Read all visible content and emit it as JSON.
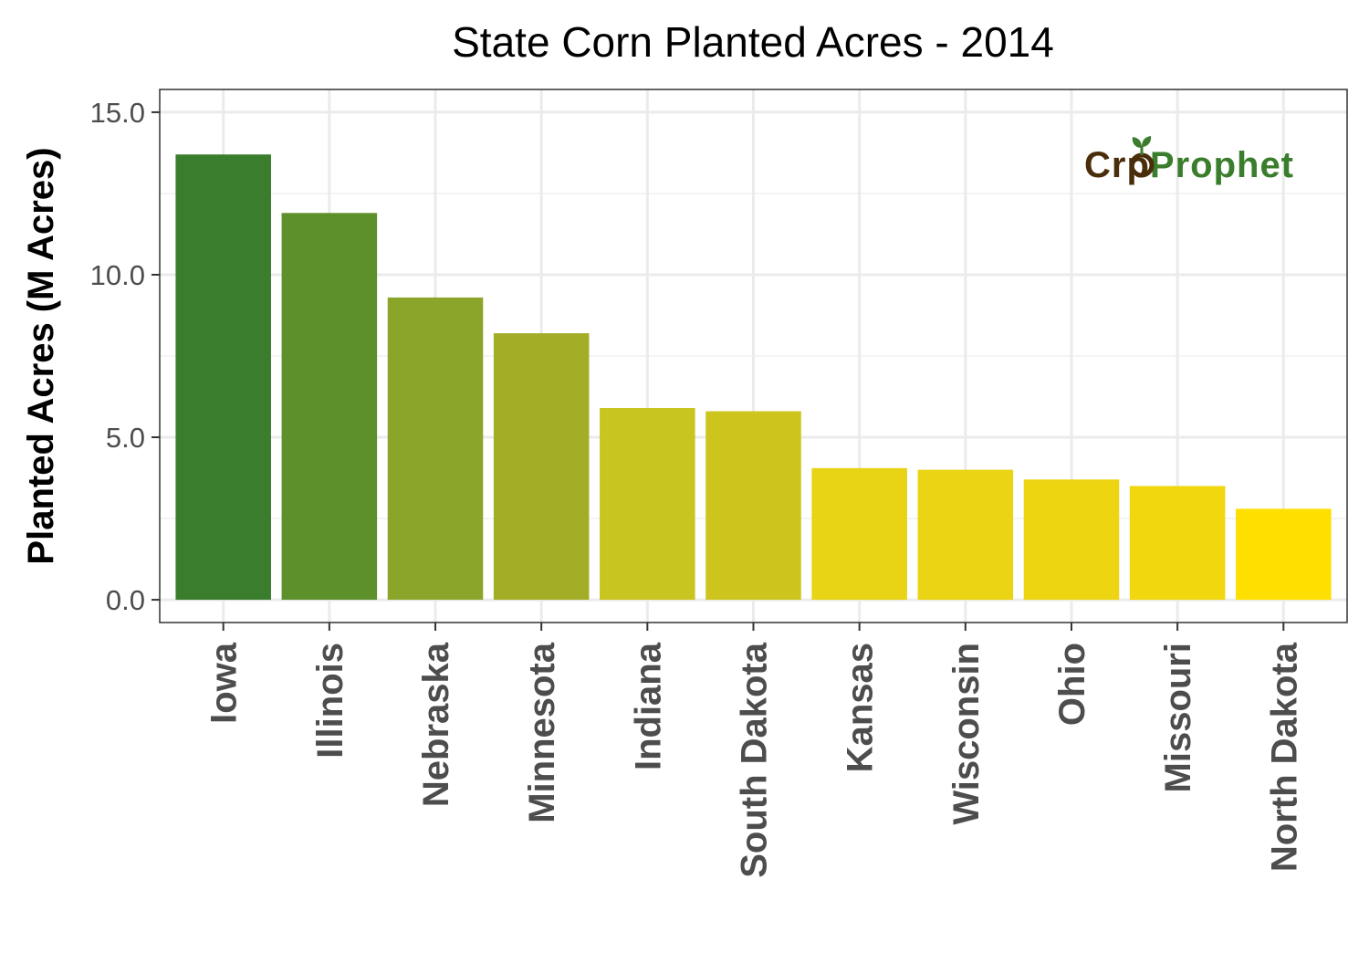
{
  "chart_data": {
    "type": "bar",
    "title": "State Corn Planted Acres - 2014",
    "xlabel": "",
    "ylabel": "Planted Acres (M Acres)",
    "categories": [
      "Iowa",
      "Illinois",
      "Nebraska",
      "Minnesota",
      "Indiana",
      "South Dakota",
      "Kansas",
      "Wisconsin",
      "Ohio",
      "Missouri",
      "North Dakota"
    ],
    "values": [
      13.7,
      11.9,
      9.3,
      8.2,
      5.9,
      5.8,
      4.05,
      4.0,
      3.7,
      3.5,
      2.8
    ],
    "colors": [
      "#3a7d2c",
      "#5d8f2b",
      "#8ba52a",
      "#a3ad26",
      "#c8c420",
      "#cdc51e",
      "#e8d314",
      "#ead414",
      "#edd512",
      "#f1d70d",
      "#ffdf00"
    ],
    "y_ticks": [
      "0.0",
      "5.0",
      "10.0",
      "15.0"
    ],
    "ylim": [
      -0.7,
      15.7
    ],
    "grid": true,
    "legend": "none"
  },
  "logo": {
    "part1": "Cr",
    "part2": "p",
    "part3": "Prophet",
    "colors": {
      "brown": "#4a2e0c",
      "green": "#3a7d2c"
    }
  }
}
